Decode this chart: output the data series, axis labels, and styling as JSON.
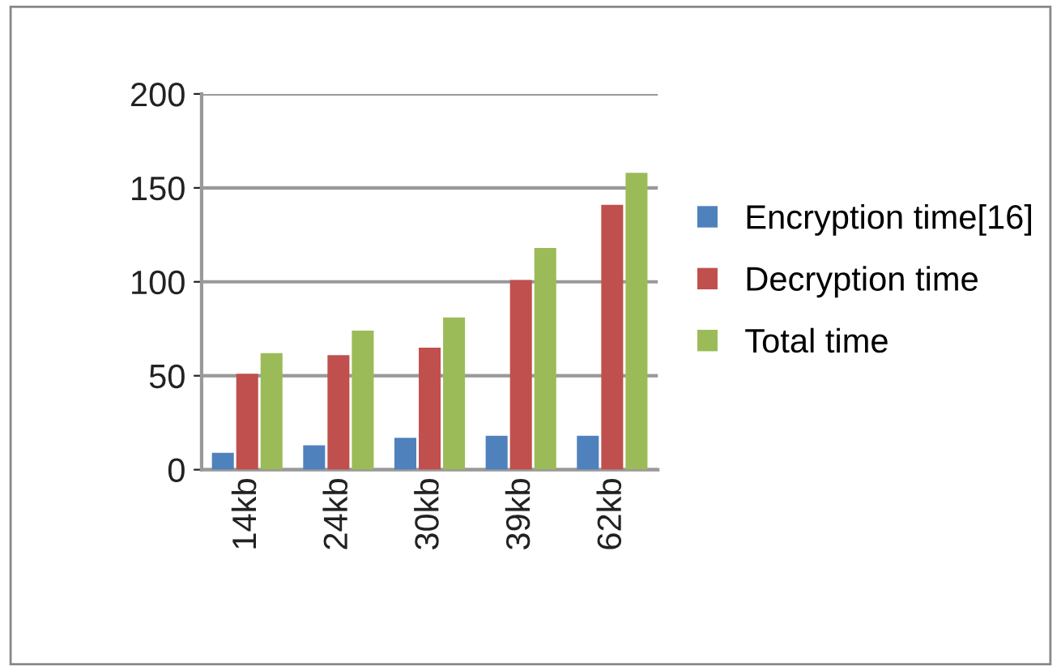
{
  "chart_data": {
    "type": "bar",
    "categories": [
      "14kb",
      "24kb",
      "30kb",
      "39kb",
      "62kb"
    ],
    "series": [
      {
        "name": "Encryption time[16]",
        "color": "#4f81bd",
        "values": [
          9,
          13,
          17,
          18,
          18
        ]
      },
      {
        "name": "Decryption time",
        "color": "#c0504d",
        "values": [
          51,
          61,
          65,
          101,
          141
        ]
      },
      {
        "name": "Total time",
        "color": "#9bbb59",
        "values": [
          62,
          74,
          81,
          118,
          158
        ]
      }
    ],
    "ylim": [
      0,
      200
    ],
    "yticks": [
      0,
      50,
      100,
      150,
      200
    ],
    "grid": "y",
    "legend": "right"
  }
}
